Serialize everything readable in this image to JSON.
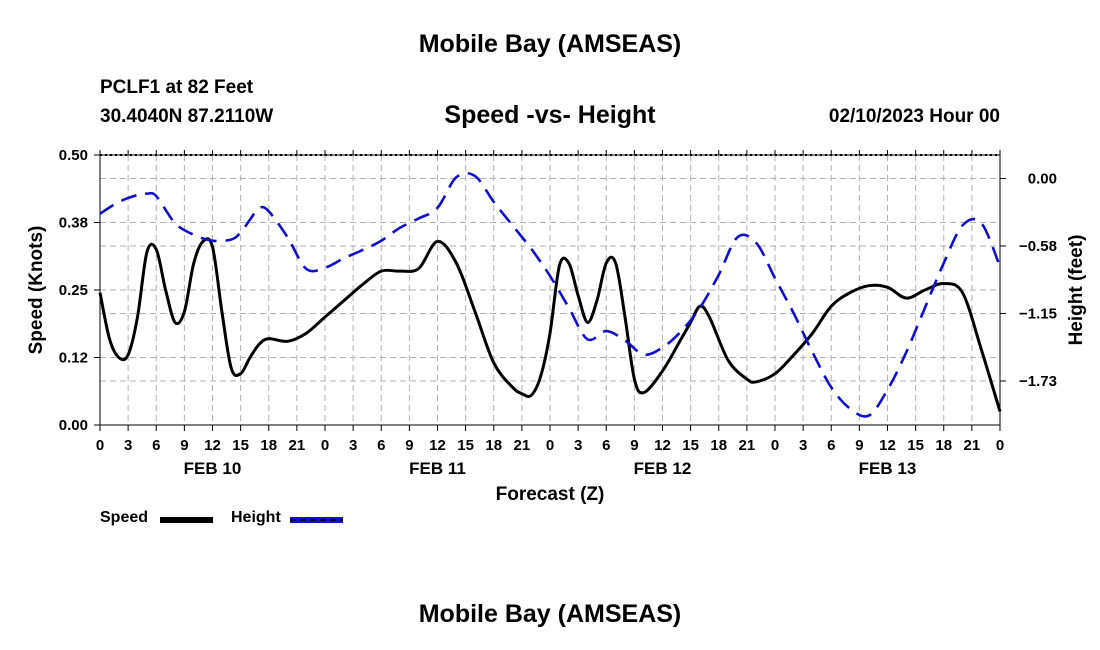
{
  "title": "Mobile Bay (AMSEAS)",
  "title_repeat": "Mobile Bay (AMSEAS)",
  "station": "PCLF1 at 82 Feet",
  "coords": "30.4040N  87.2110W",
  "subtitle": "Speed -vs- Height",
  "datetime": "02/10/2023 Hour 00",
  "colors": {
    "speed": "#000000",
    "height": "#1010cc",
    "grid": "#b0b0b0"
  },
  "chart_data": {
    "type": "line",
    "title": "Speed -vs- Height",
    "xlabel": "Forecast (Z)",
    "ylabel": "Speed (Knots)",
    "y2label": "Height (feet)",
    "grid": true,
    "legend_placement": "bottom-left",
    "x_unit": "hours from 00Z FEB 10",
    "xlim": [
      0,
      96
    ],
    "ylim": [
      0,
      0.5
    ],
    "y2lim": [
      -2.1,
      0.2
    ],
    "x_ticks": [
      0,
      3,
      6,
      9,
      12,
      15,
      18,
      21,
      24,
      27,
      30,
      33,
      36,
      39,
      42,
      45,
      48,
      51,
      54,
      57,
      60,
      63,
      66,
      69,
      72,
      75,
      78,
      81,
      84,
      87,
      90,
      93,
      96
    ],
    "x_tick_labels": [
      "0",
      "3",
      "6",
      "9",
      "12",
      "15",
      "18",
      "21",
      "0",
      "3",
      "6",
      "9",
      "12",
      "15",
      "18",
      "21",
      "0",
      "3",
      "6",
      "9",
      "12",
      "15",
      "18",
      "21",
      "0",
      "3",
      "6",
      "9",
      "12",
      "15",
      "18",
      "21",
      "0"
    ],
    "day_labels": [
      {
        "x": 12,
        "label": "FEB 10"
      },
      {
        "x": 36,
        "label": "FEB 11"
      },
      {
        "x": 60,
        "label": "FEB 12"
      },
      {
        "x": 84,
        "label": "FEB 13"
      }
    ],
    "y_ticks": [
      0,
      0.125,
      0.25,
      0.375,
      0.5
    ],
    "y_tick_labels": [
      "0.00",
      "0.12",
      "0.25",
      "0.38",
      "0.50"
    ],
    "y2_ticks": [
      0,
      -0.575,
      -1.15,
      -1.725
    ],
    "y2_tick_labels": [
      "0.00",
      "−0.58",
      "−1.15",
      "−1.73"
    ],
    "series": [
      {
        "name": "Speed",
        "axis": "left",
        "style": "solid",
        "x": [
          0,
          1,
          2,
          3,
          4,
          5,
          6,
          7,
          8,
          9,
          10,
          11,
          12,
          13,
          14,
          15,
          16,
          17,
          18,
          20,
          22,
          24,
          26,
          28,
          30,
          32,
          34,
          36,
          38,
          40,
          42,
          44,
          45,
          46,
          47,
          48,
          49,
          50,
          51,
          52,
          53,
          54,
          55,
          56,
          57,
          58,
          60,
          62,
          63,
          64,
          65,
          67,
          69,
          70,
          72,
          74,
          76,
          78,
          80,
          82,
          84,
          86,
          88,
          90,
          92,
          94,
          96
        ],
        "values": [
          0.245,
          0.16,
          0.125,
          0.13,
          0.2,
          0.32,
          0.325,
          0.25,
          0.19,
          0.21,
          0.3,
          0.34,
          0.33,
          0.21,
          0.105,
          0.095,
          0.125,
          0.15,
          0.16,
          0.155,
          0.17,
          0.2,
          0.23,
          0.26,
          0.285,
          0.285,
          0.29,
          0.34,
          0.3,
          0.21,
          0.115,
          0.07,
          0.058,
          0.055,
          0.09,
          0.17,
          0.295,
          0.3,
          0.24,
          0.19,
          0.23,
          0.3,
          0.3,
          0.2,
          0.085,
          0.06,
          0.1,
          0.16,
          0.19,
          0.22,
          0.2,
          0.12,
          0.085,
          0.08,
          0.095,
          0.13,
          0.17,
          0.22,
          0.245,
          0.258,
          0.255,
          0.235,
          0.25,
          0.262,
          0.245,
          0.14,
          0.025
        ]
      },
      {
        "name": "Height",
        "axis": "right",
        "style": "dashed",
        "x": [
          0,
          2,
          4,
          5,
          6,
          8,
          10,
          12,
          14,
          15,
          16,
          17,
          18,
          20,
          22,
          24,
          26,
          28,
          30,
          32,
          34,
          36,
          38,
          40,
          42,
          44,
          46,
          48,
          50,
          52,
          54,
          56,
          58,
          60,
          62,
          64,
          66,
          68,
          70,
          72,
          74,
          76,
          78,
          80,
          82,
          84,
          86,
          88,
          90,
          92,
          94,
          96
        ],
        "values": [
          -0.3,
          -0.2,
          -0.14,
          -0.13,
          -0.15,
          -0.38,
          -0.48,
          -0.53,
          -0.52,
          -0.46,
          -0.35,
          -0.25,
          -0.28,
          -0.5,
          -0.77,
          -0.76,
          -0.68,
          -0.61,
          -0.53,
          -0.42,
          -0.34,
          -0.25,
          0.01,
          0.02,
          -0.2,
          -0.4,
          -0.6,
          -0.83,
          -1.1,
          -1.37,
          -1.3,
          -1.38,
          -1.5,
          -1.44,
          -1.3,
          -1.1,
          -0.82,
          -0.5,
          -0.55,
          -0.85,
          -1.15,
          -1.48,
          -1.78,
          -1.96,
          -2.02,
          -1.8,
          -1.48,
          -1.1,
          -0.72,
          -0.4,
          -0.38,
          -0.75
        ]
      }
    ]
  },
  "legend": {
    "speed_label": "Speed",
    "height_label": "Height"
  }
}
